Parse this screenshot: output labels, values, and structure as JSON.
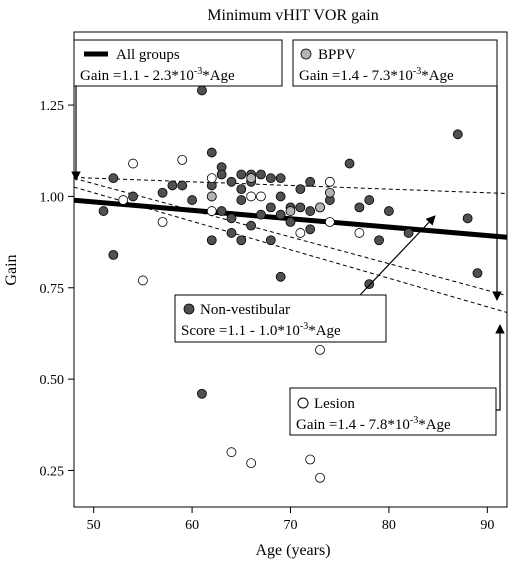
{
  "chart_data": {
    "type": "scatter",
    "title": "Minimum vHIT VOR gain",
    "xlabel": "Age (years)",
    "ylabel": "Gain",
    "xlim": [
      48,
      92
    ],
    "ylim": [
      0.15,
      1.45
    ],
    "xticks": [
      50,
      60,
      70,
      80,
      90
    ],
    "yticks": [
      0.25,
      0.5,
      0.75,
      1.0,
      1.25
    ],
    "xtick_labels": [
      "50",
      "60",
      "70",
      "80",
      "90"
    ],
    "ytick_labels": [
      "0.25",
      "0.50",
      "0.75",
      "1.00",
      "1.25"
    ],
    "grid": false,
    "colors": {
      "non_vestibular": "#505050",
      "bppv": "#b4b4b4",
      "lesion": "#ffffff",
      "line": "#000000"
    },
    "series": [
      {
        "name": "Non-vestibular",
        "marker": "dark",
        "points": [
          [
            51,
            0.96
          ],
          [
            52,
            1.05
          ],
          [
            52,
            0.84
          ],
          [
            54,
            1.0
          ],
          [
            57,
            1.01
          ],
          [
            58,
            1.03
          ],
          [
            59,
            1.03
          ],
          [
            60,
            0.99
          ],
          [
            61,
            1.29
          ],
          [
            61,
            0.46
          ],
          [
            62,
            1.12
          ],
          [
            62,
            1.03
          ],
          [
            62,
            1.0
          ],
          [
            62,
            0.88
          ],
          [
            63,
            1.08
          ],
          [
            63,
            1.06
          ],
          [
            63,
            0.96
          ],
          [
            64,
            1.04
          ],
          [
            64,
            0.94
          ],
          [
            64,
            0.9
          ],
          [
            65,
            1.06
          ],
          [
            65,
            1.02
          ],
          [
            65,
            0.99
          ],
          [
            65,
            0.88
          ],
          [
            66,
            1.06
          ],
          [
            66,
            1.04
          ],
          [
            66,
            0.92
          ],
          [
            67,
            1.06
          ],
          [
            67,
            0.95
          ],
          [
            68,
            1.05
          ],
          [
            68,
            0.97
          ],
          [
            68,
            0.88
          ],
          [
            69,
            1.05
          ],
          [
            69,
            1.0
          ],
          [
            69,
            0.95
          ],
          [
            69,
            0.78
          ],
          [
            70,
            0.97
          ],
          [
            70,
            0.93
          ],
          [
            71,
            1.02
          ],
          [
            71,
            0.97
          ],
          [
            72,
            1.04
          ],
          [
            72,
            0.96
          ],
          [
            72,
            0.91
          ],
          [
            73,
            0.97
          ],
          [
            74,
            0.99
          ],
          [
            76,
            1.09
          ],
          [
            77,
            0.97
          ],
          [
            78,
            0.99
          ],
          [
            78,
            0.76
          ],
          [
            79,
            0.88
          ],
          [
            80,
            0.96
          ],
          [
            82,
            0.9
          ],
          [
            87,
            1.17
          ],
          [
            88,
            0.94
          ],
          [
            89,
            0.79
          ]
        ]
      },
      {
        "name": "BPPV",
        "marker": "gray",
        "points": [
          [
            62,
            1.0
          ],
          [
            66,
            1.05
          ],
          [
            70,
            0.96
          ],
          [
            73,
            0.97
          ],
          [
            74,
            1.01
          ]
        ]
      },
      {
        "name": "Lesion",
        "marker": "open",
        "points": [
          [
            53,
            0.99
          ],
          [
            54,
            1.09
          ],
          [
            55,
            0.77
          ],
          [
            57,
            0.93
          ],
          [
            59,
            1.1
          ],
          [
            62,
            1.05
          ],
          [
            62,
            0.96
          ],
          [
            64,
            0.3
          ],
          [
            66,
            1.0
          ],
          [
            66,
            0.27
          ],
          [
            67,
            1.0
          ],
          [
            71,
            0.9
          ],
          [
            72,
            0.28
          ],
          [
            73,
            0.58
          ],
          [
            73,
            0.23
          ],
          [
            74,
            1.04
          ],
          [
            74,
            0.93
          ],
          [
            77,
            0.9
          ]
        ]
      }
    ],
    "lines": [
      {
        "name": "All groups",
        "intercept": 1.1,
        "slope": -0.0023,
        "style": "solid-thick"
      },
      {
        "name": "BPPV",
        "intercept": 1.4,
        "slope": -0.0073,
        "style": "dashed"
      },
      {
        "name": "Non-vestibular",
        "intercept": 1.1,
        "slope": -0.001,
        "style": "dashed"
      },
      {
        "name": "Lesion",
        "intercept": 1.4,
        "slope": -0.0078,
        "style": "dashed"
      }
    ],
    "legend": [
      {
        "id": "all-groups",
        "name": "All groups",
        "marker": "line",
        "equation_pre": "Gain =1.1 - 2.3*10",
        "equation_exp": "-3",
        "equation_post": "*Age"
      },
      {
        "id": "bppv",
        "name": "BPPV",
        "marker": "gray",
        "equation_pre": "Gain =1.4 - 7.3*10",
        "equation_exp": "-3",
        "equation_post": "*Age"
      },
      {
        "id": "non-vestibular",
        "name": "Non-vestibular",
        "marker": "dark",
        "equation_pre": "Score =1.1 - 1.0*10",
        "equation_exp": "-3",
        "equation_post": "*Age"
      },
      {
        "id": "lesion",
        "name": "Lesion",
        "marker": "open",
        "equation_pre": "Gain =1.4 - 7.8*10",
        "equation_exp": "-3",
        "equation_post": "*Age"
      }
    ]
  }
}
